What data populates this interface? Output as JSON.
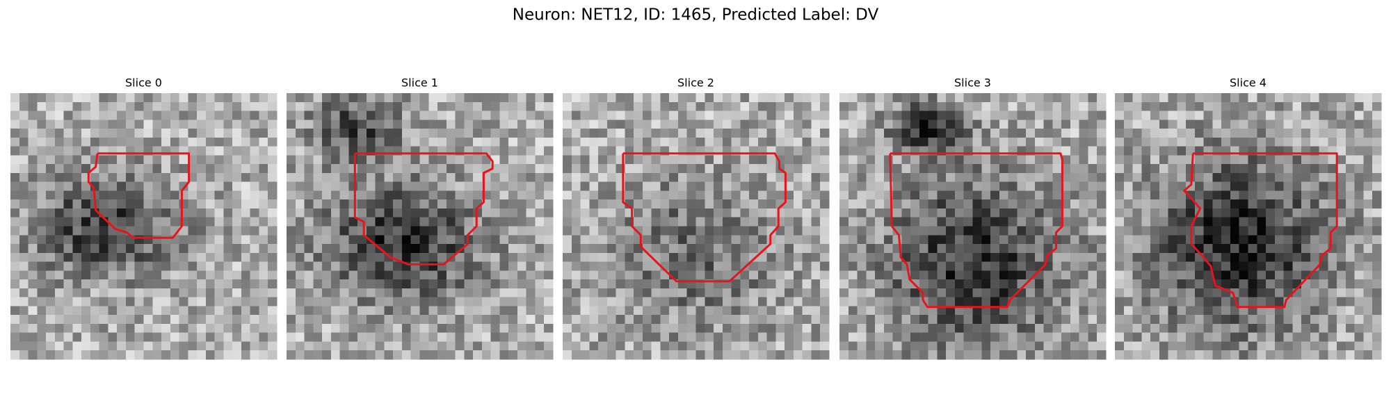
{
  "title": "Neuron: NET12, ID: 1465, Predicted Label: DV",
  "panels": [
    {
      "title": "Slice 0"
    },
    {
      "title": "Slice 1"
    },
    {
      "title": "Slice 2"
    },
    {
      "title": "Slice 3"
    },
    {
      "title": "Slice 4"
    }
  ]
}
